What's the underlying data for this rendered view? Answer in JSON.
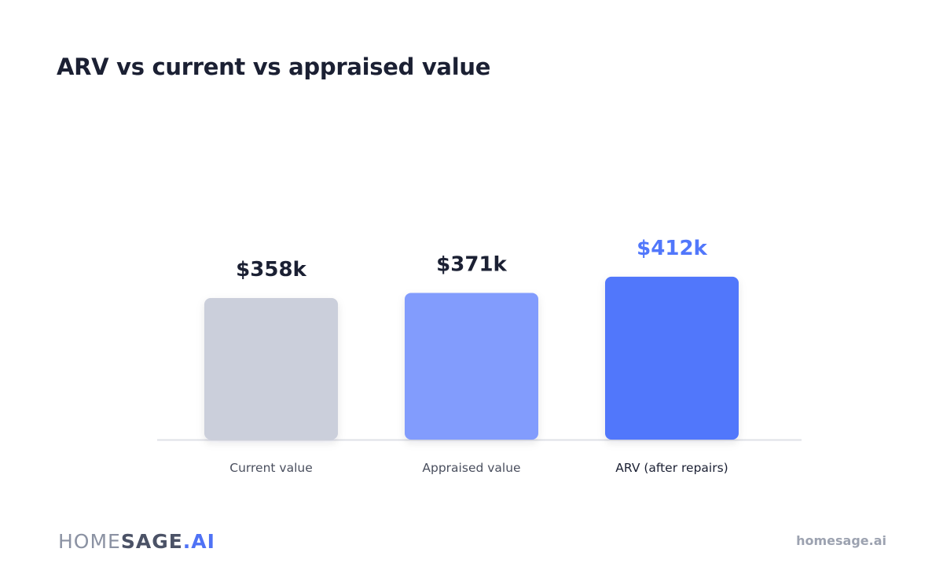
{
  "brand": {
    "logo_part1": "HOME",
    "logo_part2": "SAGE",
    "logo_part3": ".AI",
    "url": "homesage.ai"
  },
  "chart_data": {
    "type": "bar",
    "title": "ARV vs current vs appraised value",
    "categories": [
      "Current value",
      "Appraised value",
      "ARV (after repairs)"
    ],
    "values": [
      358,
      371,
      412
    ],
    "value_labels": [
      "$358k",
      "$371k",
      "$412k"
    ],
    "unit": "$k",
    "xlabel": "",
    "ylabel": "",
    "grid": false,
    "legend": "none",
    "bar_colors": [
      "#cbcfdb",
      "#829cfd",
      "#5177fb"
    ],
    "label_colors": [
      "#1b2033",
      "#1b2033",
      "#5177fb"
    ],
    "category_label_colors": [
      "#4a4f5e",
      "#4a4f5e",
      "#1b2033"
    ],
    "axis_line_color": "#dfe1e7"
  }
}
